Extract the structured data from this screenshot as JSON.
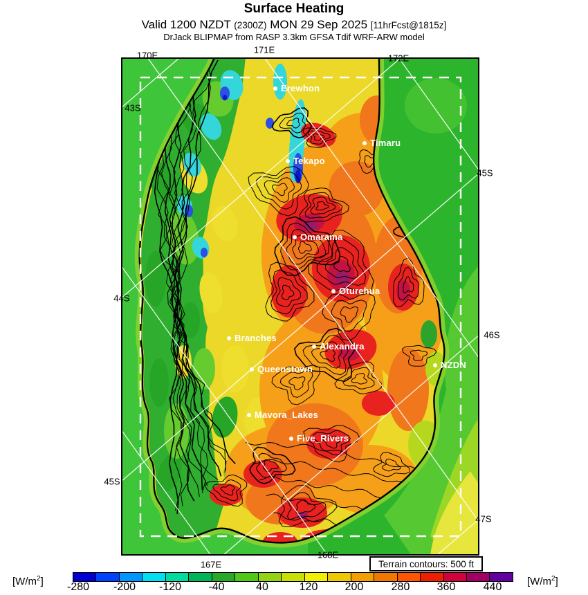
{
  "header": {
    "title": "Surface Heating",
    "valid_prefix": "Valid 1200 NZDT",
    "valid_zulu": "(2300Z)",
    "valid_date": "MON 29 Sep 2025",
    "valid_fcst": "[11hrFcst@1815z]",
    "model_line": "DrJack BLIPMAP from RASP 3.3km GFSA Tdif WRF-ARW model"
  },
  "map": {
    "grid_labels": [
      {
        "text": "170E"
      },
      {
        "text": "171E"
      },
      {
        "text": "172E"
      },
      {
        "text": "43S"
      },
      {
        "text": "44S"
      },
      {
        "text": "45S"
      },
      {
        "text": "45S"
      },
      {
        "text": "46S"
      },
      {
        "text": "47S"
      },
      {
        "text": "167E"
      },
      {
        "text": "168E"
      }
    ],
    "cities": [
      {
        "name": "Erewhon"
      },
      {
        "name": "Timaru"
      },
      {
        "name": "Tekapo"
      },
      {
        "name": "Omarama"
      },
      {
        "name": "Oturehua"
      },
      {
        "name": "Branches"
      },
      {
        "name": "Alexandra"
      },
      {
        "name": "Queenstown"
      },
      {
        "name": "NZDN"
      },
      {
        "name": "Mavora_Lakes"
      },
      {
        "name": "Five_Rivers"
      }
    ],
    "terrain_note": "Terrain contours: 500 ft"
  },
  "colorbar": {
    "unit_pre": "[W/m",
    "unit_sup": "2",
    "unit_post": "]",
    "ticks": [
      "-280",
      "-200",
      "-120",
      "-40",
      "40",
      "120",
      "200",
      "280",
      "360",
      "440"
    ],
    "colors": [
      "#0000d2",
      "#0041ff",
      "#0096ff",
      "#00e0f0",
      "#00dca0",
      "#00b45a",
      "#28aa28",
      "#50c819",
      "#96d214",
      "#c8e105",
      "#f0f000",
      "#f0c800",
      "#f0a000",
      "#f07800",
      "#ff5500",
      "#f01e00",
      "#d2003c",
      "#a00064",
      "#6400a0"
    ]
  }
}
